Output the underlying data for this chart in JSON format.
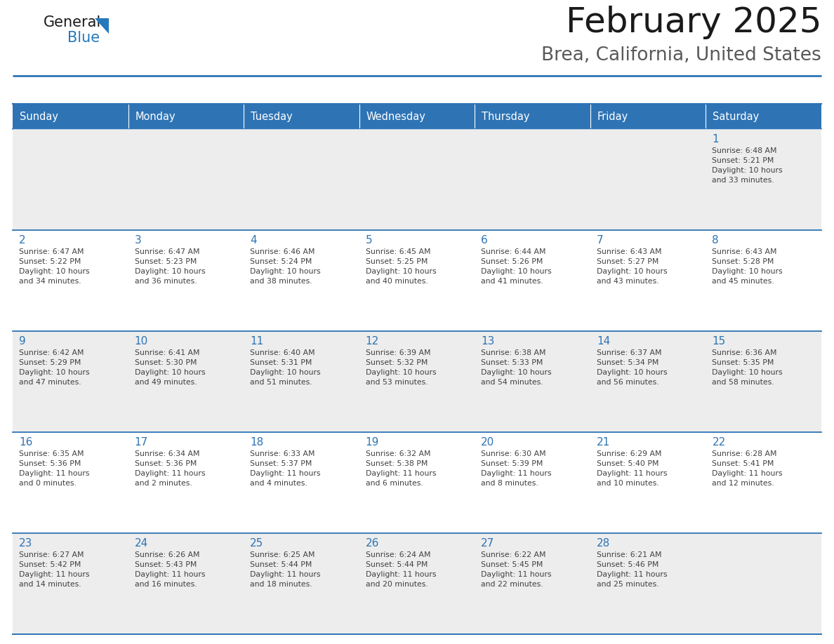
{
  "title": "February 2025",
  "subtitle": "Brea, California, United States",
  "header_color": "#2E74B5",
  "header_text_color": "#FFFFFF",
  "cell_bg_white": "#FFFFFF",
  "cell_bg_gray": "#EDEDED",
  "border_color": "#2E74B5",
  "day_number_color": "#2E74B5",
  "text_color": "#404040",
  "days_of_week": [
    "Sunday",
    "Monday",
    "Tuesday",
    "Wednesday",
    "Thursday",
    "Friday",
    "Saturday"
  ],
  "calendar_data": [
    [
      null,
      null,
      null,
      null,
      null,
      null,
      {
        "day": "1",
        "sunrise": "6:48 AM",
        "sunset": "5:21 PM",
        "daylight": "10 hours\nand 33 minutes."
      }
    ],
    [
      {
        "day": "2",
        "sunrise": "6:47 AM",
        "sunset": "5:22 PM",
        "daylight": "10 hours\nand 34 minutes."
      },
      {
        "day": "3",
        "sunrise": "6:47 AM",
        "sunset": "5:23 PM",
        "daylight": "10 hours\nand 36 minutes."
      },
      {
        "day": "4",
        "sunrise": "6:46 AM",
        "sunset": "5:24 PM",
        "daylight": "10 hours\nand 38 minutes."
      },
      {
        "day": "5",
        "sunrise": "6:45 AM",
        "sunset": "5:25 PM",
        "daylight": "10 hours\nand 40 minutes."
      },
      {
        "day": "6",
        "sunrise": "6:44 AM",
        "sunset": "5:26 PM",
        "daylight": "10 hours\nand 41 minutes."
      },
      {
        "day": "7",
        "sunrise": "6:43 AM",
        "sunset": "5:27 PM",
        "daylight": "10 hours\nand 43 minutes."
      },
      {
        "day": "8",
        "sunrise": "6:43 AM",
        "sunset": "5:28 PM",
        "daylight": "10 hours\nand 45 minutes."
      }
    ],
    [
      {
        "day": "9",
        "sunrise": "6:42 AM",
        "sunset": "5:29 PM",
        "daylight": "10 hours\nand 47 minutes."
      },
      {
        "day": "10",
        "sunrise": "6:41 AM",
        "sunset": "5:30 PM",
        "daylight": "10 hours\nand 49 minutes."
      },
      {
        "day": "11",
        "sunrise": "6:40 AM",
        "sunset": "5:31 PM",
        "daylight": "10 hours\nand 51 minutes."
      },
      {
        "day": "12",
        "sunrise": "6:39 AM",
        "sunset": "5:32 PM",
        "daylight": "10 hours\nand 53 minutes."
      },
      {
        "day": "13",
        "sunrise": "6:38 AM",
        "sunset": "5:33 PM",
        "daylight": "10 hours\nand 54 minutes."
      },
      {
        "day": "14",
        "sunrise": "6:37 AM",
        "sunset": "5:34 PM",
        "daylight": "10 hours\nand 56 minutes."
      },
      {
        "day": "15",
        "sunrise": "6:36 AM",
        "sunset": "5:35 PM",
        "daylight": "10 hours\nand 58 minutes."
      }
    ],
    [
      {
        "day": "16",
        "sunrise": "6:35 AM",
        "sunset": "5:36 PM",
        "daylight": "11 hours\nand 0 minutes."
      },
      {
        "day": "17",
        "sunrise": "6:34 AM",
        "sunset": "5:36 PM",
        "daylight": "11 hours\nand 2 minutes."
      },
      {
        "day": "18",
        "sunrise": "6:33 AM",
        "sunset": "5:37 PM",
        "daylight": "11 hours\nand 4 minutes."
      },
      {
        "day": "19",
        "sunrise": "6:32 AM",
        "sunset": "5:38 PM",
        "daylight": "11 hours\nand 6 minutes."
      },
      {
        "day": "20",
        "sunrise": "6:30 AM",
        "sunset": "5:39 PM",
        "daylight": "11 hours\nand 8 minutes."
      },
      {
        "day": "21",
        "sunrise": "6:29 AM",
        "sunset": "5:40 PM",
        "daylight": "11 hours\nand 10 minutes."
      },
      {
        "day": "22",
        "sunrise": "6:28 AM",
        "sunset": "5:41 PM",
        "daylight": "11 hours\nand 12 minutes."
      }
    ],
    [
      {
        "day": "23",
        "sunrise": "6:27 AM",
        "sunset": "5:42 PM",
        "daylight": "11 hours\nand 14 minutes."
      },
      {
        "day": "24",
        "sunrise": "6:26 AM",
        "sunset": "5:43 PM",
        "daylight": "11 hours\nand 16 minutes."
      },
      {
        "day": "25",
        "sunrise": "6:25 AM",
        "sunset": "5:44 PM",
        "daylight": "11 hours\nand 18 minutes."
      },
      {
        "day": "26",
        "sunrise": "6:24 AM",
        "sunset": "5:44 PM",
        "daylight": "11 hours\nand 20 minutes."
      },
      {
        "day": "27",
        "sunrise": "6:22 AM",
        "sunset": "5:45 PM",
        "daylight": "11 hours\nand 22 minutes."
      },
      {
        "day": "28",
        "sunrise": "6:21 AM",
        "sunset": "5:46 PM",
        "daylight": "11 hours\nand 25 minutes."
      },
      null
    ]
  ],
  "logo_general_color": "#1a1a1a",
  "logo_blue_color": "#2479BD",
  "title_color": "#1a1a1a",
  "subtitle_color": "#595959"
}
